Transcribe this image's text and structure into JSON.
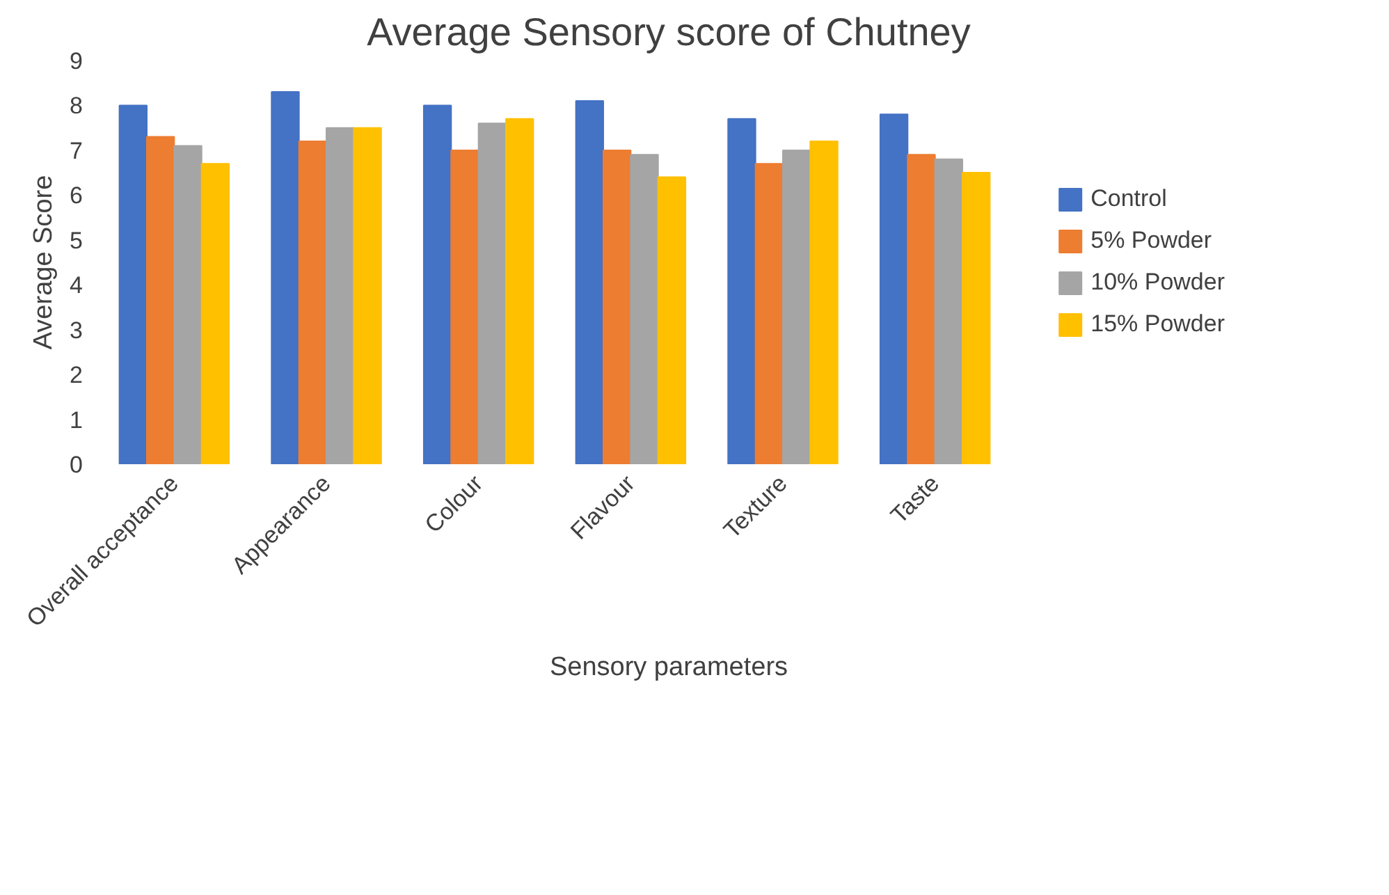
{
  "chart_data": {
    "type": "bar",
    "title": "Average Sensory score of Chutney",
    "xlabel": "Sensory parameters",
    "ylabel": "Average Score",
    "categories": [
      "Overall acceptance",
      "Appearance",
      "Colour",
      "Flavour",
      "Texture",
      "Taste"
    ],
    "series": [
      {
        "name": "Control",
        "color": "#4472c4",
        "values": [
          8.0,
          8.3,
          8.0,
          8.1,
          7.7,
          7.8
        ]
      },
      {
        "name": "5% Powder",
        "color": "#ed7d31",
        "values": [
          7.3,
          7.2,
          7.0,
          7.0,
          6.7,
          6.9
        ]
      },
      {
        "name": "10% Powder",
        "color": "#a5a5a5",
        "values": [
          7.1,
          7.5,
          7.6,
          6.9,
          7.0,
          6.8
        ]
      },
      {
        "name": "15% Powder",
        "color": "#ffc000",
        "values": [
          6.7,
          7.5,
          7.7,
          6.4,
          7.2,
          6.5
        ]
      }
    ],
    "ylim": [
      0,
      9
    ],
    "yticks": [
      0,
      1,
      2,
      3,
      4,
      5,
      6,
      7,
      8,
      9
    ],
    "grid": false,
    "legend": "right"
  }
}
